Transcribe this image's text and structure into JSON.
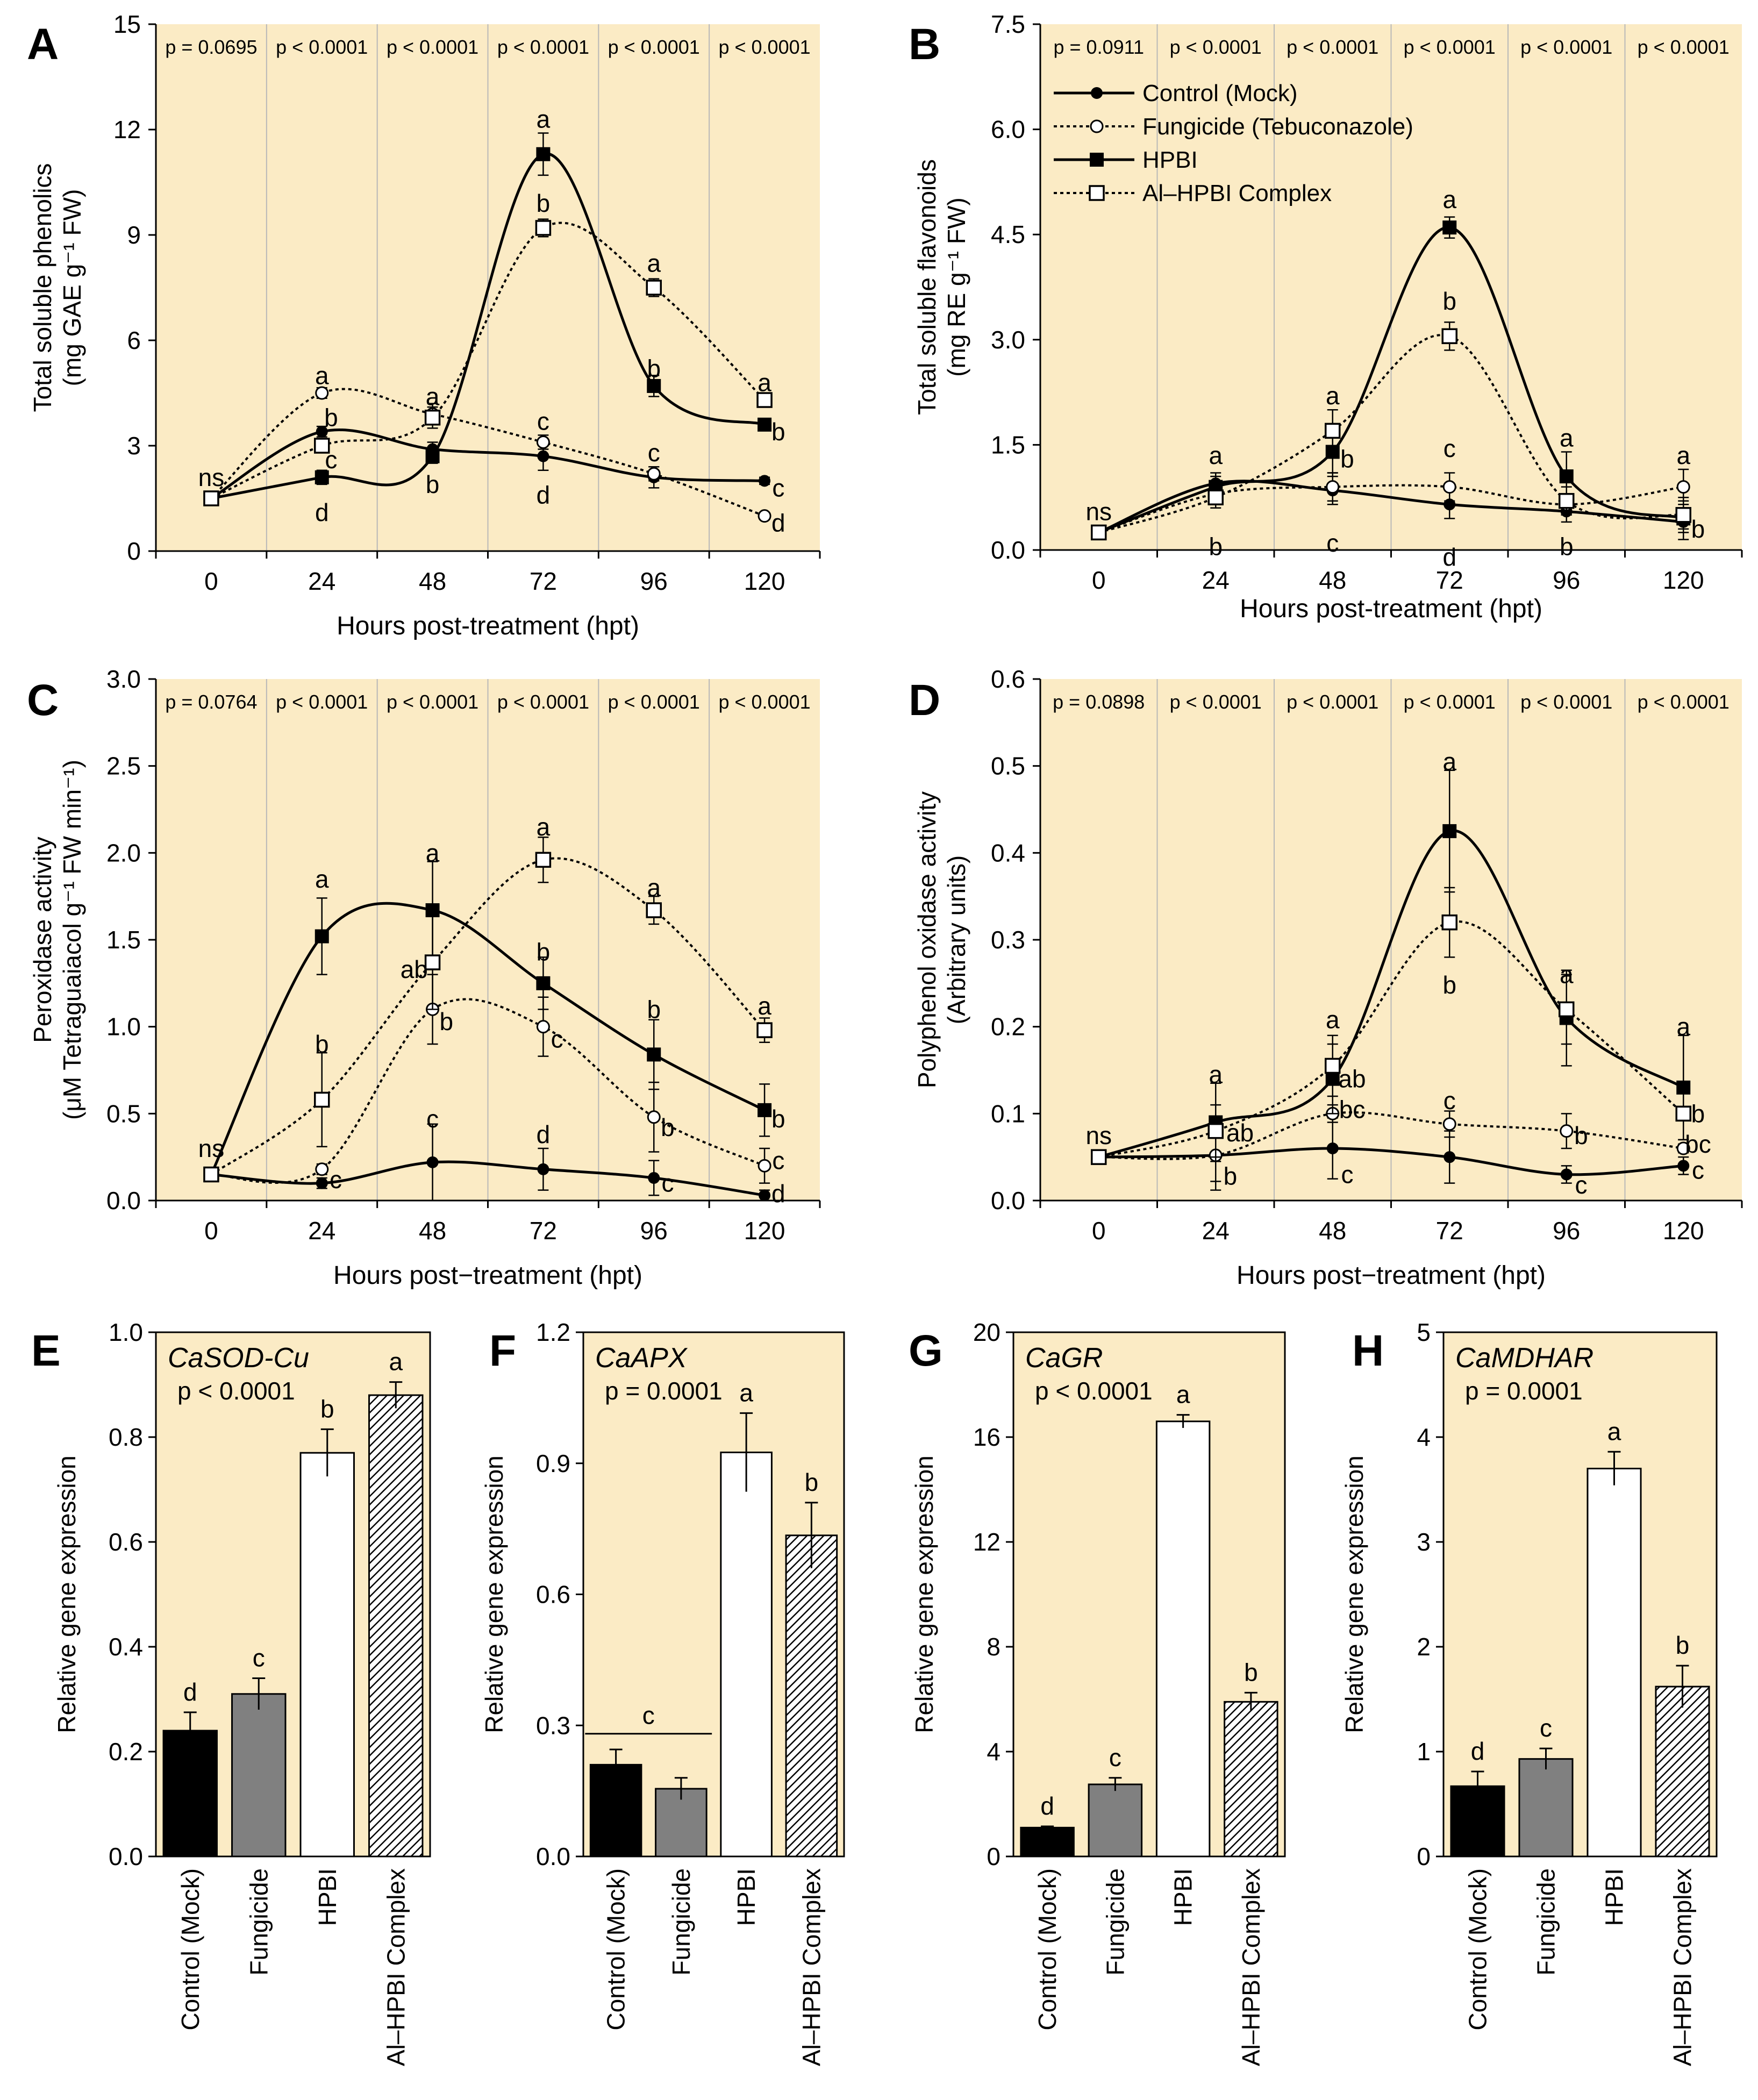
{
  "figure": {
    "x_ticks": [
      "0",
      "24",
      "48",
      "72",
      "96",
      "120"
    ],
    "bar_categories": [
      "Control (Mock)",
      "Fungicide",
      "HPBI",
      "Al–HPBI Complex"
    ],
    "legend": {
      "control": "Control (Mock)",
      "fungicide": "Fungicide (Tebuconazole)",
      "hpbi": "HPBI",
      "complex": "Al–HPBI Complex"
    },
    "colors": {
      "panel_bg": "#fbebc5",
      "line": "#000000",
      "fungicide_bar": "#808080",
      "grid": "#b8b8b8"
    }
  },
  "chart_data": [
    {
      "id": "A",
      "type": "line",
      "panel_letter": "A",
      "title": "",
      "xlabel": "Hours post-treatment  (hpt)",
      "ylabel_line1": "Total  soluble phenolics",
      "ylabel_line2": "(mg GAE g⁻¹ FW)",
      "ylim": [
        0,
        15
      ],
      "yticks": [
        "0",
        "3",
        "6",
        "9",
        "12",
        "15"
      ],
      "x": [
        0,
        24,
        48,
        72,
        96,
        120
      ],
      "pvalues": [
        "p = 0.0695",
        "p < 0.0001",
        "p < 0.0001",
        "p < 0.0001",
        "p < 0.0001",
        "p < 0.0001"
      ],
      "series": [
        {
          "name": "Control (Mock)",
          "key": "control",
          "values": [
            1.5,
            3.4,
            2.9,
            2.7,
            2.1,
            2.0
          ],
          "errors": [
            0.1,
            0.15,
            0.2,
            0.4,
            0.3,
            0.1
          ],
          "letters": [
            "ns",
            "b",
            "b",
            "d",
            "c",
            "c"
          ]
        },
        {
          "name": "Fungicide (Tebuconazole)",
          "key": "fungicide",
          "values": [
            1.5,
            4.5,
            3.9,
            3.1,
            2.2,
            1.0
          ],
          "errors": [
            0.1,
            0.15,
            0.3,
            0.2,
            0.2,
            0.1
          ],
          "letters": [
            "",
            "a",
            "a",
            "c",
            "c",
            "d"
          ]
        },
        {
          "name": "HPBI",
          "key": "hpbi",
          "values": [
            1.5,
            2.1,
            2.7,
            11.3,
            4.7,
            3.6
          ],
          "errors": [
            0.1,
            0.2,
            0.2,
            0.6,
            0.3,
            0.1
          ],
          "letters": [
            "",
            "d",
            "b",
            "a",
            "b",
            "b"
          ]
        },
        {
          "name": "Al–HPBI Complex",
          "key": "complex",
          "values": [
            1.5,
            3.0,
            3.8,
            9.2,
            7.5,
            4.3
          ],
          "errors": [
            0.1,
            0.15,
            0.3,
            0.25,
            0.25,
            0.2
          ],
          "letters": [
            "",
            "c",
            "a",
            "b",
            "a",
            "a"
          ]
        }
      ],
      "labels": [
        {
          "t": "ns",
          "x": 0,
          "y": 2.1
        },
        {
          "t": "a",
          "x": 24,
          "y": 5.0
        },
        {
          "t": "b",
          "x": 26,
          "y": 3.8
        },
        {
          "t": "c",
          "x": 26,
          "y": 2.6
        },
        {
          "t": "d",
          "x": 24,
          "y": 1.1
        },
        {
          "t": "a",
          "x": 48,
          "y": 4.4
        },
        {
          "t": "b",
          "x": 48,
          "y": 1.9
        },
        {
          "t": "a",
          "x": 72,
          "y": 12.3
        },
        {
          "t": "b",
          "x": 72,
          "y": 9.9
        },
        {
          "t": "c",
          "x": 72,
          "y": 3.7
        },
        {
          "t": "d",
          "x": 72,
          "y": 1.6
        },
        {
          "t": "a",
          "x": 96,
          "y": 8.2
        },
        {
          "t": "b",
          "x": 96,
          "y": 5.2
        },
        {
          "t": "c",
          "x": 96,
          "y": 2.8
        },
        {
          "t": "a",
          "x": 120,
          "y": 4.8
        },
        {
          "t": "b",
          "x": 123,
          "y": 3.4
        },
        {
          "t": "c",
          "x": 123,
          "y": 1.8
        },
        {
          "t": "d",
          "x": 123,
          "y": 0.8
        }
      ]
    },
    {
      "id": "B",
      "type": "line",
      "panel_letter": "B",
      "title": "",
      "xlabel": "Hours post-treatment  (hpt)",
      "ylabel_line1": "Total  soluble  flavonoids",
      "ylabel_line2": "(mg RE  g⁻¹ FW)",
      "ylim": [
        0,
        7.5
      ],
      "yticks": [
        "0.0",
        "1.5",
        "3.0",
        "4.5",
        "6.0",
        "7.5"
      ],
      "x": [
        0,
        24,
        48,
        72,
        96,
        120
      ],
      "pvalues": [
        "p = 0.0911",
        "p < 0.0001",
        "p < 0.0001",
        "p < 0.0001",
        "p < 0.0001",
        "p < 0.0001"
      ],
      "legend_placement": "top-left",
      "series": [
        {
          "name": "Control (Mock)",
          "key": "control",
          "values": [
            0.25,
            0.95,
            0.85,
            0.65,
            0.55,
            0.4
          ],
          "errors": [
            0.05,
            0.15,
            0.2,
            0.2,
            0.15,
            0.15
          ],
          "letters": [
            "ns",
            "a",
            "c",
            "d",
            "b",
            "b"
          ]
        },
        {
          "name": "Fungicide (Tebuconazole)",
          "key": "fungicide",
          "values": [
            0.25,
            0.8,
            0.9,
            0.9,
            0.65,
            0.9
          ],
          "errors": [
            0.05,
            0.15,
            0.2,
            0.2,
            0.15,
            0.25
          ],
          "letters": [
            "",
            "",
            "",
            "c",
            "",
            "a"
          ]
        },
        {
          "name": "HPBI",
          "key": "hpbi",
          "values": [
            0.25,
            0.9,
            1.4,
            4.6,
            1.05,
            0.45
          ],
          "errors": [
            0.05,
            0.15,
            0.3,
            0.15,
            0.35,
            0.3
          ],
          "letters": [
            "",
            "",
            "b",
            "a",
            "a",
            ""
          ]
        },
        {
          "name": "Al–HPBI Complex",
          "key": "complex",
          "values": [
            0.25,
            0.75,
            1.7,
            3.05,
            0.7,
            0.5
          ],
          "errors": [
            0.05,
            0.15,
            0.3,
            0.2,
            0.2,
            0.2
          ],
          "letters": [
            "",
            "b",
            "a",
            "b",
            "",
            ""
          ]
        }
      ],
      "labels": [
        {
          "t": "ns",
          "x": 0,
          "y": 0.55
        },
        {
          "t": "a",
          "x": 24,
          "y": 1.35
        },
        {
          "t": "b",
          "x": 24,
          "y": 0.05
        },
        {
          "t": "a",
          "x": 48,
          "y": 2.2
        },
        {
          "t": "b",
          "x": 51,
          "y": 1.3
        },
        {
          "t": "c",
          "x": 48,
          "y": 0.1
        },
        {
          "t": "a",
          "x": 72,
          "y": 5.0
        },
        {
          "t": "b",
          "x": 72,
          "y": 3.55
        },
        {
          "t": "c",
          "x": 72,
          "y": 1.45
        },
        {
          "t": "d",
          "x": 72,
          "y": -0.1
        },
        {
          "t": "a",
          "x": 96,
          "y": 1.6
        },
        {
          "t": "b",
          "x": 96,
          "y": 0.05
        },
        {
          "t": "a",
          "x": 120,
          "y": 1.35
        },
        {
          "t": "b",
          "x": 123,
          "y": 0.3
        }
      ]
    },
    {
      "id": "C",
      "type": "line",
      "panel_letter": "C",
      "title": "",
      "xlabel": "Hours post−treatment  (hpt)",
      "ylabel_line1": "Peroxidase  activity",
      "ylabel_line2": "(μM Tetraguaiacol  g⁻¹ FW min⁻¹)",
      "ylim": [
        0,
        3.0
      ],
      "yticks": [
        "0.0",
        "0.5",
        "1.0",
        "1.5",
        "2.0",
        "2.5",
        "3.0"
      ],
      "x": [
        0,
        24,
        48,
        72,
        96,
        120
      ],
      "pvalues": [
        "p = 0.0764",
        "p < 0.0001",
        "p < 0.0001",
        "p < 0.0001",
        "p < 0.0001",
        "p < 0.0001"
      ],
      "series": [
        {
          "name": "Control (Mock)",
          "key": "control",
          "values": [
            0.15,
            0.1,
            0.22,
            0.18,
            0.13,
            0.03
          ],
          "errors": [
            0.02,
            0.03,
            0.22,
            0.12,
            0.1,
            0.03
          ],
          "letters": [
            "ns",
            "",
            "c",
            "d",
            "c",
            "d"
          ]
        },
        {
          "name": "Fungicide (Tebuconazole)",
          "key": "fungicide",
          "values": [
            0.15,
            0.18,
            1.1,
            1.0,
            0.48,
            0.2
          ],
          "errors": [
            0.02,
            0.03,
            0.2,
            0.17,
            0.2,
            0.1
          ],
          "letters": [
            "",
            "c",
            "b",
            "c",
            "b",
            "c"
          ]
        },
        {
          "name": "HPBI",
          "key": "hpbi",
          "values": [
            0.15,
            1.52,
            1.67,
            1.25,
            0.84,
            0.52
          ],
          "errors": [
            0.02,
            0.22,
            0.28,
            0.15,
            0.2,
            0.15
          ],
          "letters": [
            "",
            "a",
            "a",
            "b",
            "b",
            "b"
          ]
        },
        {
          "name": "Al–HPBI Complex",
          "key": "complex",
          "values": [
            0.15,
            0.58,
            1.37,
            1.96,
            1.67,
            0.98
          ],
          "errors": [
            0.02,
            0.27,
            0.27,
            0.13,
            0.08,
            0.07
          ],
          "letters": [
            "",
            "b",
            "ab",
            "a",
            "a",
            "a"
          ]
        }
      ],
      "labels": [
        {
          "t": "ns",
          "x": 0,
          "y": 0.3
        },
        {
          "t": "a",
          "x": 24,
          "y": 1.85
        },
        {
          "t": "b",
          "x": 24,
          "y": 0.9
        },
        {
          "t": "c",
          "x": 27,
          "y": 0.12
        },
        {
          "t": "a",
          "x": 48,
          "y": 2.0
        },
        {
          "t": "ab",
          "x": 44,
          "y": 1.33
        },
        {
          "t": "b",
          "x": 51,
          "y": 1.03
        },
        {
          "t": "c",
          "x": 48,
          "y": 0.47
        },
        {
          "t": "a",
          "x": 72,
          "y": 2.15
        },
        {
          "t": "b",
          "x": 72,
          "y": 1.43
        },
        {
          "t": "c",
          "x": 75,
          "y": 0.93
        },
        {
          "t": "d",
          "x": 72,
          "y": 0.38
        },
        {
          "t": "a",
          "x": 96,
          "y": 1.8
        },
        {
          "t": "b",
          "x": 96,
          "y": 1.1
        },
        {
          "t": "b",
          "x": 99,
          "y": 0.42
        },
        {
          "t": "c",
          "x": 99,
          "y": 0.1
        },
        {
          "t": "a",
          "x": 120,
          "y": 1.12
        },
        {
          "t": "b",
          "x": 123,
          "y": 0.47
        },
        {
          "t": "c",
          "x": 123,
          "y": 0.23
        },
        {
          "t": "d",
          "x": 123,
          "y": 0.04
        }
      ]
    },
    {
      "id": "D",
      "type": "line",
      "panel_letter": "D",
      "title": "",
      "xlabel": "Hours post−treatment  (hpt)",
      "ylabel_line1": "Polyphenol  oxidase  activity",
      "ylabel_line2": "(Arbitrary units)",
      "ylim": [
        0,
        0.6
      ],
      "yticks": [
        "0.0",
        "0.1",
        "0.2",
        "0.3",
        "0.4",
        "0.5",
        "0.6"
      ],
      "x": [
        0,
        24,
        48,
        72,
        96,
        120
      ],
      "pvalues": [
        "p = 0.0898",
        "p < 0.0001",
        "p < 0.0001",
        "p < 0.0001",
        "p < 0.0001",
        "p < 0.0001"
      ],
      "series": [
        {
          "name": "Control (Mock)",
          "key": "control",
          "values": [
            0.05,
            0.052,
            0.06,
            0.05,
            0.03,
            0.04
          ],
          "errors": [
            0.005,
            0.04,
            0.035,
            0.03,
            0.01,
            0.01
          ],
          "letters": [
            "ns",
            "b",
            "c",
            "",
            "c",
            "c"
          ]
        },
        {
          "name": "Fungicide (Tebuconazole)",
          "key": "fungicide",
          "values": [
            0.05,
            0.052,
            0.1,
            0.088,
            0.08,
            0.06
          ],
          "errors": [
            0.005,
            0.03,
            0.01,
            0.015,
            0.02,
            0.005
          ],
          "letters": [
            "",
            "",
            "bc",
            "c",
            "b",
            "bc"
          ]
        },
        {
          "name": "HPBI",
          "key": "hpbi",
          "values": [
            0.05,
            0.09,
            0.14,
            0.425,
            0.21,
            0.13
          ],
          "errors": [
            0.005,
            0.045,
            0.04,
            0.07,
            0.055,
            0.06
          ],
          "letters": [
            "",
            "a",
            "ab",
            "a",
            "",
            "b"
          ]
        },
        {
          "name": "Al–HPBI Complex",
          "key": "complex",
          "values": [
            0.05,
            0.08,
            0.155,
            0.32,
            0.22,
            0.1
          ],
          "errors": [
            0.005,
            0.03,
            0.035,
            0.04,
            0.04,
            0.03
          ],
          "letters": [
            "",
            "ab",
            "a",
            "b",
            "a",
            "a"
          ]
        }
      ],
      "labels": [
        {
          "t": "ns",
          "x": 0,
          "y": 0.075
        },
        {
          "t": "a",
          "x": 24,
          "y": 0.145
        },
        {
          "t": "ab",
          "x": 29,
          "y": 0.078
        },
        {
          "t": "b",
          "x": 27,
          "y": 0.028
        },
        {
          "t": "a",
          "x": 48,
          "y": 0.208
        },
        {
          "t": "ab",
          "x": 52,
          "y": 0.14
        },
        {
          "t": "bc",
          "x": 52,
          "y": 0.105
        },
        {
          "t": "c",
          "x": 51,
          "y": 0.03
        },
        {
          "t": "a",
          "x": 72,
          "y": 0.505
        },
        {
          "t": "c",
          "x": 72,
          "y": 0.115
        },
        {
          "t": "b",
          "x": 72,
          "y": 0.248
        },
        {
          "t": "a",
          "x": 96,
          "y": 0.26
        },
        {
          "t": "b",
          "x": 99,
          "y": 0.075
        },
        {
          "t": "c",
          "x": 99,
          "y": 0.018
        },
        {
          "t": "a",
          "x": 120,
          "y": 0.2
        },
        {
          "t": "b",
          "x": 123,
          "y": 0.1
        },
        {
          "t": "bc",
          "x": 123,
          "y": 0.065
        },
        {
          "t": "c",
          "x": 123,
          "y": 0.035
        }
      ]
    },
    {
      "id": "E",
      "type": "bar",
      "panel_letter": "E",
      "title": "CaSOD-Cu",
      "pvalue": "p < 0.0001",
      "ylabel": "Relative  gene expression",
      "ylim": [
        0,
        1.0
      ],
      "yticks": [
        "0.0",
        "0.2",
        "0.4",
        "0.6",
        "0.8",
        "1.0"
      ],
      "categories": [
        "Control (Mock)",
        "Fungicide",
        "HPBI",
        "Al–HPBI Complex"
      ],
      "values": [
        0.24,
        0.31,
        0.77,
        0.88
      ],
      "errors": [
        0.035,
        0.03,
        0.045,
        0.025
      ],
      "letters": [
        "d",
        "c",
        "b",
        "a"
      ]
    },
    {
      "id": "F",
      "type": "bar",
      "panel_letter": "F",
      "title": "CaAPX",
      "pvalue": "p = 0.0001",
      "ylabel": "Relative  gene expression",
      "ylim": [
        0,
        1.2
      ],
      "yticks": [
        "0.0",
        "0.3",
        "0.6",
        "0.9",
        "1.2"
      ],
      "categories": [
        "Control (Mock)",
        "Fungicide",
        "HPBI",
        "Al–HPBI Complex"
      ],
      "values": [
        0.21,
        0.155,
        0.925,
        0.735
      ],
      "errors": [
        0.035,
        0.025,
        0.09,
        0.075
      ],
      "letters": [
        "",
        "",
        "a",
        "b"
      ],
      "group_letter": "c"
    },
    {
      "id": "G",
      "type": "bar",
      "panel_letter": "G",
      "title": "CaGR",
      "pvalue": "p < 0.0001",
      "ylabel": "Relative  gene expression",
      "ylim": [
        0,
        20
      ],
      "yticks": [
        "0",
        "4",
        "8",
        "12",
        "16",
        "20"
      ],
      "categories": [
        "Control (Mock)",
        "Fungicide",
        "HPBI",
        "Al–HPBI Complex"
      ],
      "values": [
        1.1,
        2.75,
        16.6,
        5.9
      ],
      "errors": [
        0.05,
        0.25,
        0.25,
        0.35
      ],
      "letters": [
        "d",
        "c",
        "a",
        "b"
      ]
    },
    {
      "id": "H",
      "type": "bar",
      "panel_letter": "H",
      "title": "CaMDHAR",
      "pvalue": "p = 0.0001",
      "ylabel": "Relative  gene expression",
      "ylim": [
        0,
        5
      ],
      "yticks": [
        "0",
        "1",
        "2",
        "3",
        "4",
        "5"
      ],
      "categories": [
        "Control (Mock)",
        "Fungicide",
        "HPBI",
        "Al–HPBI Complex"
      ],
      "values": [
        0.67,
        0.93,
        3.7,
        1.62
      ],
      "errors": [
        0.14,
        0.1,
        0.16,
        0.2
      ],
      "letters": [
        "d",
        "c",
        "a",
        "b"
      ]
    }
  ]
}
